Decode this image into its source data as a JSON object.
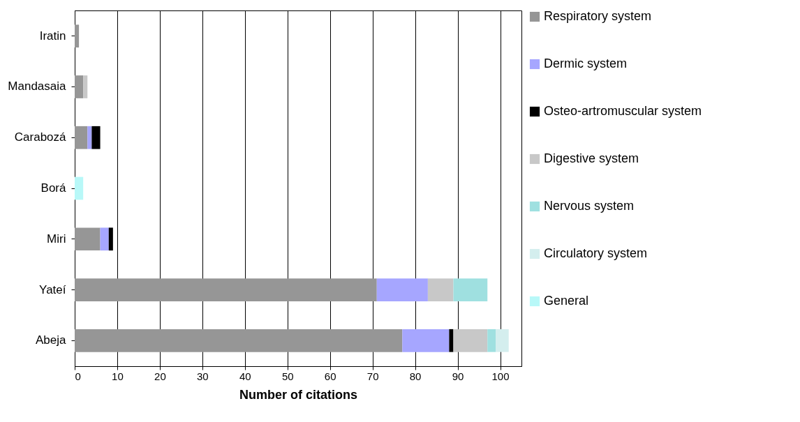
{
  "chart_data": {
    "type": "bar",
    "orientation": "horizontal",
    "stacked": true,
    "xlabel": "Number of citations",
    "categories": [
      "Iratin",
      "Mandasaia",
      "Carabozá",
      "Borá",
      "Miri",
      "Yateí",
      "Abeja"
    ],
    "series": [
      {
        "name": "Respiratory system",
        "color": "#969696",
        "values": [
          1,
          2,
          3,
          null,
          6,
          71,
          77
        ]
      },
      {
        "name": "Dermic system",
        "color": "#a6a6ff",
        "values": [
          null,
          null,
          1,
          null,
          2,
          12,
          11
        ]
      },
      {
        "name": "Osteo-artromuscular system",
        "color": "#000000",
        "values": [
          null,
          null,
          2,
          null,
          1,
          null,
          1
        ]
      },
      {
        "name": "Digestive system",
        "color": "#c8c8c8",
        "values": [
          null,
          1,
          null,
          null,
          null,
          6,
          8
        ]
      },
      {
        "name": "Nervous system",
        "color": "#9fe0e0",
        "values": [
          null,
          null,
          null,
          null,
          null,
          8,
          2
        ]
      },
      {
        "name": "Circulatory system",
        "color": "#d4eeee",
        "values": [
          null,
          null,
          null,
          null,
          null,
          null,
          3
        ]
      },
      {
        "name": "General",
        "color": "#b8f8f8",
        "values": [
          null,
          null,
          null,
          2,
          null,
          null,
          null
        ]
      }
    ],
    "xlim": [
      0,
      105
    ],
    "xticks": [
      0,
      10,
      20,
      30,
      40,
      50,
      60,
      70,
      80,
      90,
      100
    ],
    "grid": "x",
    "legend": "right"
  }
}
